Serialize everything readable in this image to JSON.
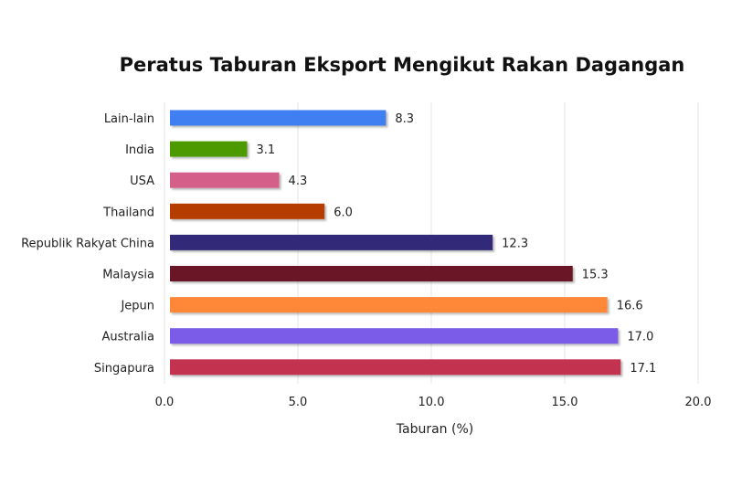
{
  "chart_data": {
    "type": "bar",
    "orientation": "horizontal",
    "title": "Peratus Taburan Eksport Mengikut Rakan Dagangan",
    "xlabel": "Taburan (%)",
    "ylabel": "",
    "xlim": [
      0,
      20
    ],
    "xticks": [
      "0.0",
      "5.0",
      "10.0",
      "15.0",
      "20.0"
    ],
    "grid": true,
    "categories": [
      "Lain-lain",
      "India",
      "USA",
      "Thailand",
      "Republik Rakyat China",
      "Malaysia",
      "Jepun",
      "Australia",
      "Singapura"
    ],
    "values": [
      8.3,
      3.1,
      4.3,
      6.0,
      12.3,
      15.3,
      16.6,
      17.0,
      17.1
    ],
    "value_labels": [
      "8.3",
      "3.1",
      "4.3",
      "6.0",
      "12.3",
      "15.3",
      "16.6",
      "17.0",
      "17.1"
    ],
    "colors": [
      "#3f7ff2",
      "#4e9a06",
      "#d4608a",
      "#b63e00",
      "#302a78",
      "#6b1426",
      "#ff8838",
      "#7a5ce8",
      "#c3314f"
    ]
  }
}
